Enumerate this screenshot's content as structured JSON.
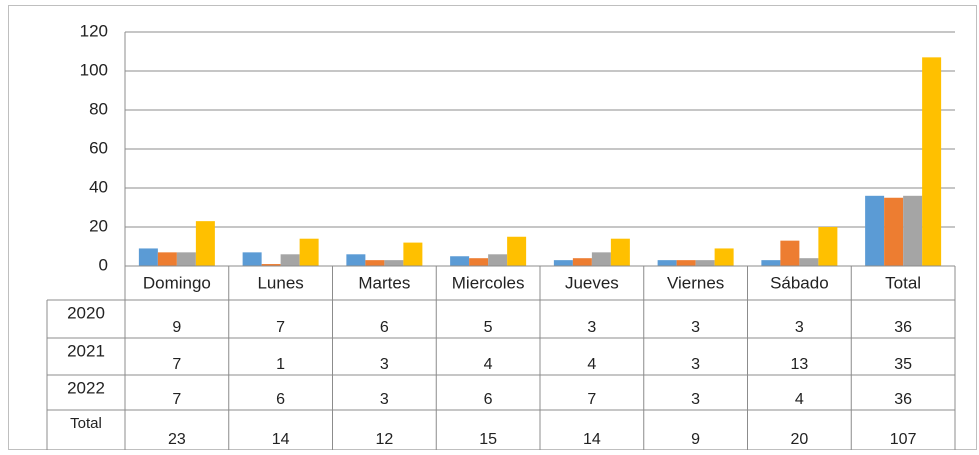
{
  "chart_data": {
    "type": "bar",
    "categories": [
      "Domingo",
      "Lunes",
      "Martes",
      "Miercoles",
      "Jueves",
      "Viernes",
      "Sábado",
      "Total"
    ],
    "series": [
      {
        "name": "2020",
        "color": "#5b9bd5",
        "values": [
          9,
          7,
          6,
          5,
          3,
          3,
          3,
          36
        ]
      },
      {
        "name": "2021",
        "color": "#ed7d31",
        "values": [
          7,
          1,
          3,
          4,
          4,
          3,
          13,
          35
        ]
      },
      {
        "name": "2022",
        "color": "#a5a5a5",
        "values": [
          7,
          6,
          3,
          6,
          7,
          3,
          4,
          36
        ]
      },
      {
        "name": "Total",
        "color": "#ffc000",
        "values": [
          23,
          14,
          12,
          15,
          14,
          9,
          20,
          107
        ]
      }
    ],
    "ylim": [
      0,
      120
    ],
    "yticks": [
      0,
      20,
      40,
      60,
      80,
      100,
      120
    ],
    "grid": true
  }
}
